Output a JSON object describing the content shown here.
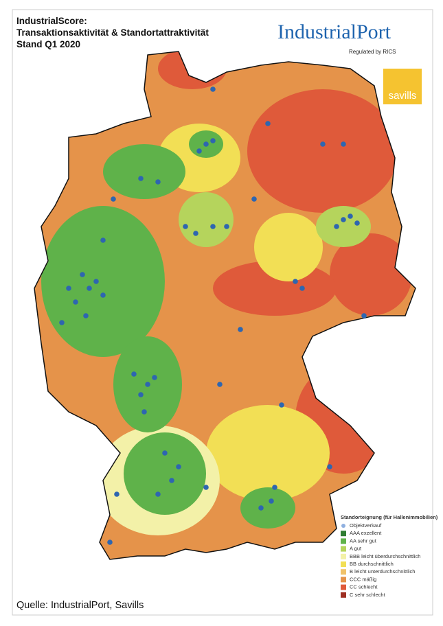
{
  "header": {
    "title_lines": [
      "IndustrialScore:",
      "Transaktionsaktivität & Standortattraktivität",
      "Stand Q1 2020"
    ]
  },
  "logos": {
    "industrialport": "IndustrialPort",
    "regulated": "Regulated by RICS",
    "savills": "savills"
  },
  "legend": {
    "title": "Standorteignung (für Hallenimmobilien)",
    "items": [
      {
        "label": "Objektverkauf",
        "color": "#8fb0e0",
        "shape": "dot"
      },
      {
        "label": "AAA exzellent",
        "color": "#2f7d32",
        "shape": "square"
      },
      {
        "label": "AA sehr gut",
        "color": "#5fb24a",
        "shape": "square"
      },
      {
        "label": "A gut",
        "color": "#b5d45c",
        "shape": "square"
      },
      {
        "label": "BBB leicht überdurchschnittlich",
        "color": "#f3f1a8",
        "shape": "square"
      },
      {
        "label": "BB durchschnittlich",
        "color": "#f2df55",
        "shape": "square"
      },
      {
        "label": "B leicht unterdurchschnittlich",
        "color": "#f0c26a",
        "shape": "square"
      },
      {
        "label": "CCC mäßig",
        "color": "#e5934a",
        "shape": "square"
      },
      {
        "label": "CC schlecht",
        "color": "#df5a3a",
        "shape": "square"
      },
      {
        "label": "C sehr schlecht",
        "color": "#9e2f22",
        "shape": "square"
      }
    ]
  },
  "footer": {
    "source": "Quelle: IndustrialPort, Savills"
  }
}
